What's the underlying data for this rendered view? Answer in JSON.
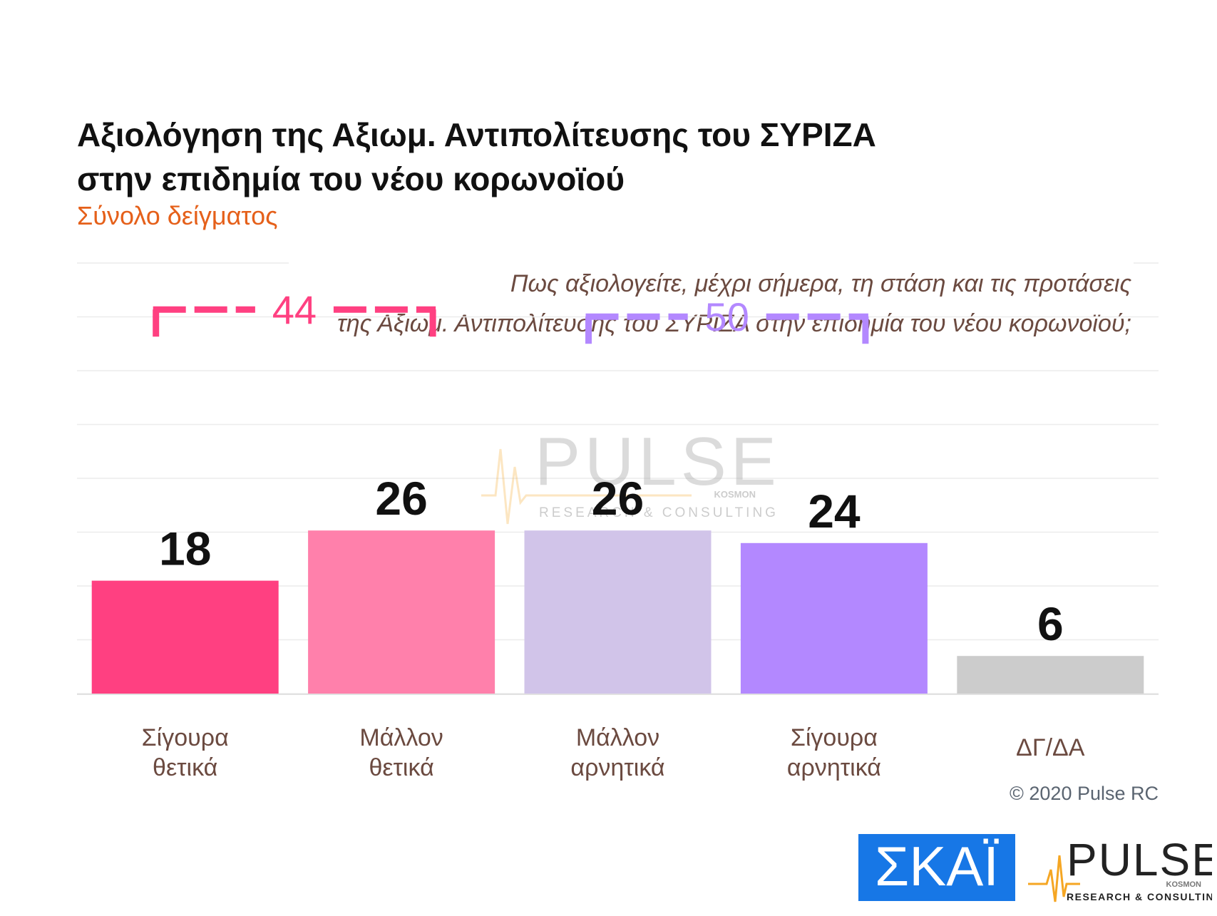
{
  "header": {
    "title_line1": "Αξιολόγηση της Αξιωμ. Αντιπολίτευσης του ΣΥΡΙΖΑ",
    "title_line2": "στην επιδημία του νέου κορωνοϊού",
    "subtitle": "Σύνολο δείγματος",
    "question_line1": "Πως αξιολογείτε, μέχρι σήμερα, τη στάση και τις προτάσεις",
    "question_line2": "της Αξιωμ. Αντιπολίτευσης του ΣΥΡΙΖΑ στην επιδημία του νέου κορωνοϊού;"
  },
  "chart_data": {
    "type": "bar",
    "categories": [
      [
        "Σίγουρα",
        "θετικά"
      ],
      [
        "Μάλλον",
        "θετικά"
      ],
      [
        "Μάλλον",
        "αρνητικά"
      ],
      [
        "Σίγουρα",
        "αρνητικά"
      ],
      [
        "ΔΓ/ΔΑ"
      ]
    ],
    "values": [
      18,
      26,
      26,
      24,
      6
    ],
    "bar_colors": [
      "#ff4081",
      "#ff80ab",
      "#d1c4e9",
      "#b388ff",
      "#cccccc"
    ],
    "grid": true,
    "brackets": [
      {
        "label": "44",
        "from": 0,
        "to": 1,
        "color": "#ff4081"
      },
      {
        "label": "50",
        "from": 2,
        "to": 3,
        "color": "#b388ff"
      }
    ]
  },
  "watermark": {
    "brand": "PULSE",
    "tagline": "RESEARCH & CONSULTING",
    "sub": "KOSMON"
  },
  "footer": {
    "copyright": "© 2020 Pulse RC",
    "skai_logo": "ΣΚΑΪ",
    "pulse_logo": "PULSE",
    "pulse_sub": "KOSMON",
    "pulse_tagline": "RESEARCH & CONSULTING"
  }
}
